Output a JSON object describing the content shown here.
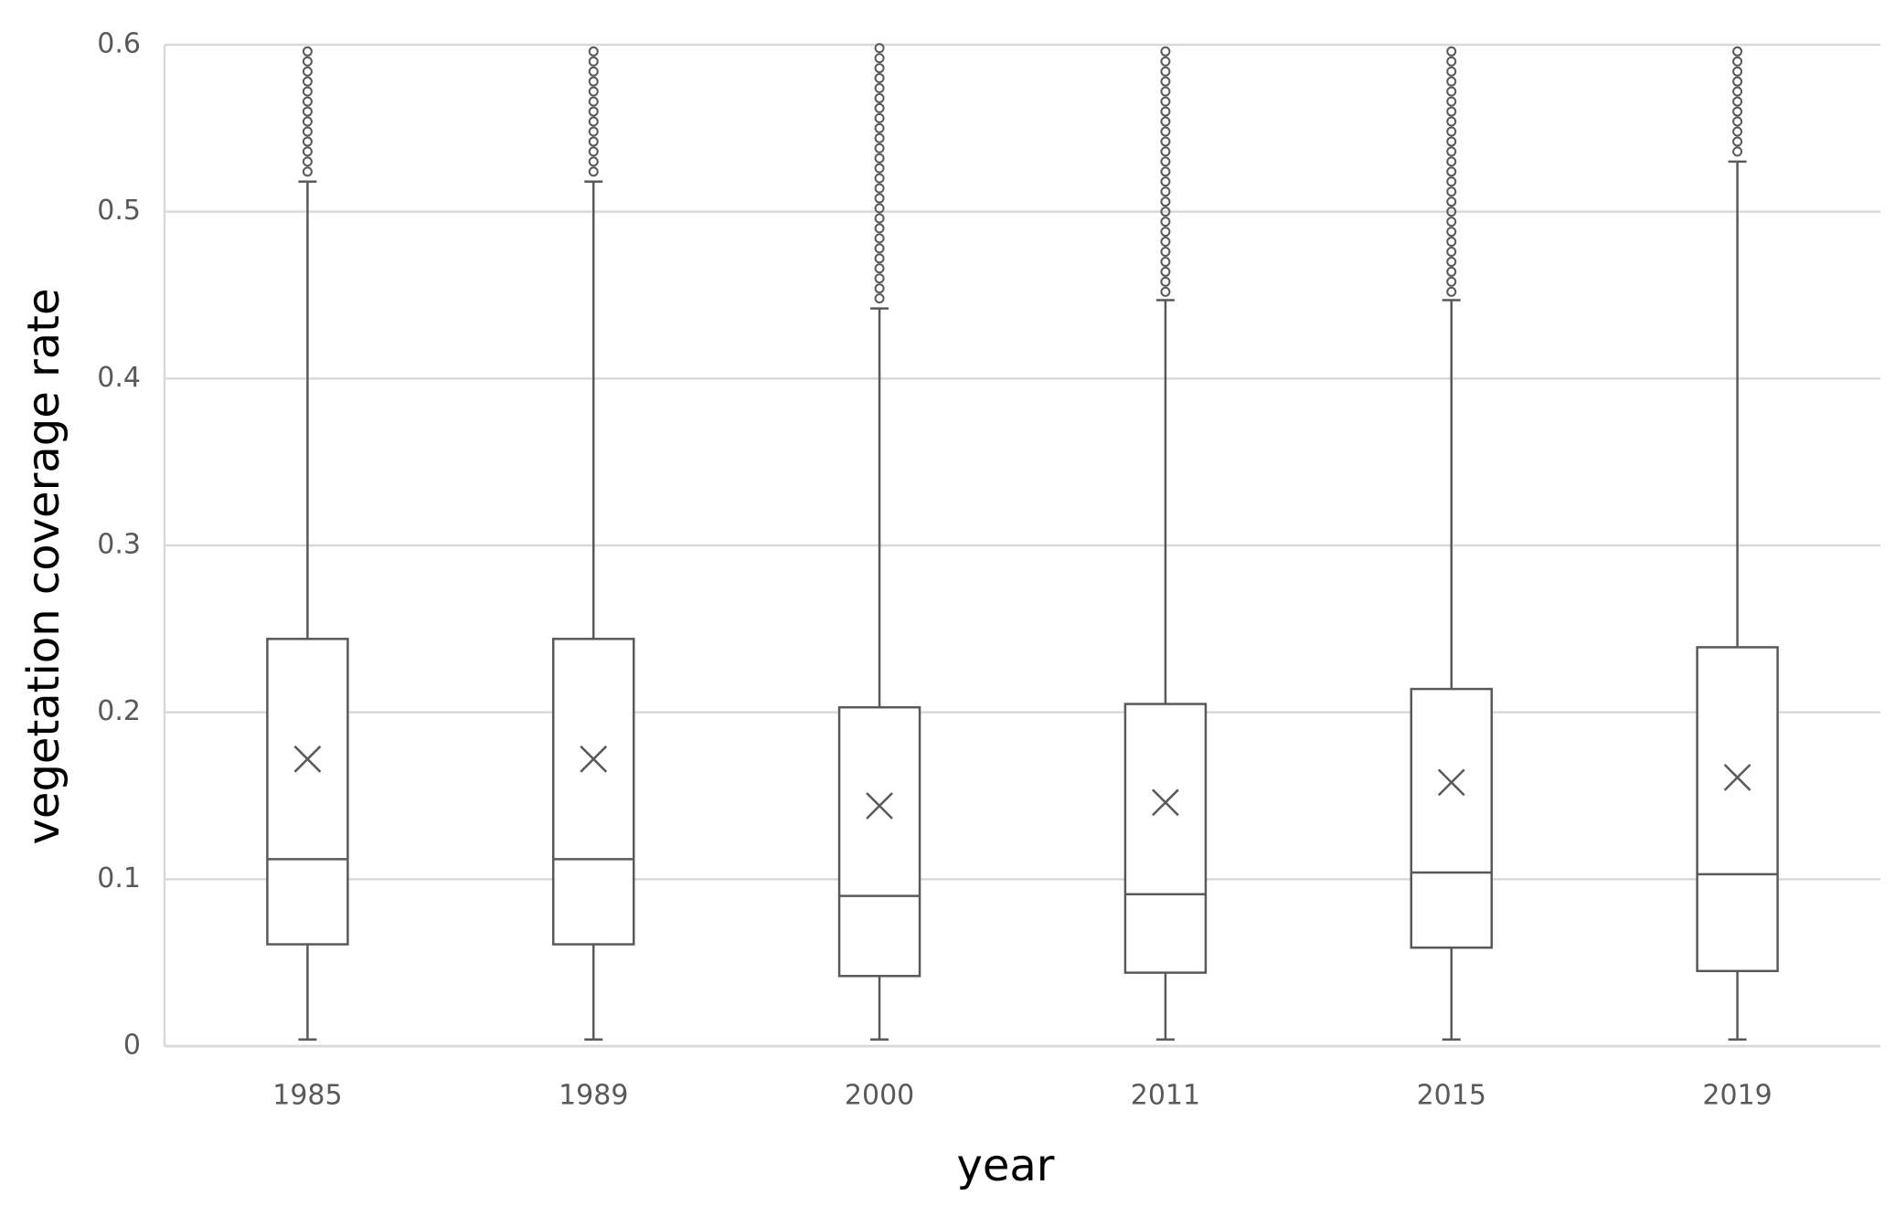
{
  "chart_data": {
    "type": "box",
    "x_label": "year",
    "y_label": "vegetation coverage rate",
    "categories": [
      "1985",
      "1989",
      "2000",
      "2011",
      "2015",
      "2019"
    ],
    "boxes": [
      {
        "min": 0.004,
        "q1": 0.061,
        "median": 0.112,
        "q3": 0.244,
        "max": 0.518,
        "mean": 0.172,
        "outliers": [
          0.524,
          0.53,
          0.536,
          0.542,
          0.548,
          0.554,
          0.56,
          0.566,
          0.572,
          0.578,
          0.584,
          0.59,
          0.596
        ]
      },
      {
        "min": 0.004,
        "q1": 0.061,
        "median": 0.112,
        "q3": 0.244,
        "max": 0.518,
        "mean": 0.172,
        "outliers": [
          0.524,
          0.53,
          0.536,
          0.542,
          0.548,
          0.554,
          0.56,
          0.566,
          0.572,
          0.578,
          0.584,
          0.59,
          0.596
        ]
      },
      {
        "min": 0.004,
        "q1": 0.042,
        "median": 0.09,
        "q3": 0.203,
        "max": 0.442,
        "mean": 0.144,
        "outliers": [
          0.448,
          0.454,
          0.46,
          0.466,
          0.472,
          0.478,
          0.484,
          0.49,
          0.496,
          0.502,
          0.508,
          0.514,
          0.52,
          0.526,
          0.532,
          0.538,
          0.544,
          0.55,
          0.556,
          0.562,
          0.568,
          0.574,
          0.58,
          0.586,
          0.592,
          0.598
        ]
      },
      {
        "min": 0.004,
        "q1": 0.044,
        "median": 0.091,
        "q3": 0.205,
        "max": 0.447,
        "mean": 0.146,
        "outliers": [
          0.452,
          0.458,
          0.464,
          0.47,
          0.476,
          0.482,
          0.488,
          0.494,
          0.5,
          0.506,
          0.512,
          0.518,
          0.524,
          0.53,
          0.536,
          0.542,
          0.548,
          0.554,
          0.56,
          0.566,
          0.572,
          0.578,
          0.584,
          0.59,
          0.596
        ]
      },
      {
        "min": 0.004,
        "q1": 0.059,
        "median": 0.104,
        "q3": 0.214,
        "max": 0.447,
        "mean": 0.158,
        "outliers": [
          0.452,
          0.458,
          0.464,
          0.47,
          0.476,
          0.482,
          0.488,
          0.494,
          0.5,
          0.506,
          0.512,
          0.518,
          0.524,
          0.53,
          0.536,
          0.542,
          0.548,
          0.554,
          0.56,
          0.566,
          0.572,
          0.578,
          0.584,
          0.59,
          0.596
        ]
      },
      {
        "min": 0.004,
        "q1": 0.045,
        "median": 0.103,
        "q3": 0.239,
        "max": 0.53,
        "mean": 0.161,
        "outliers": [
          0.536,
          0.542,
          0.548,
          0.554,
          0.56,
          0.566,
          0.572,
          0.578,
          0.584,
          0.59,
          0.596
        ]
      }
    ],
    "ylim": [
      0,
      0.6
    ],
    "yticks": [
      0,
      0.1,
      0.2,
      0.3,
      0.4,
      0.5,
      0.6
    ],
    "grid": true,
    "color": "#595959"
  }
}
